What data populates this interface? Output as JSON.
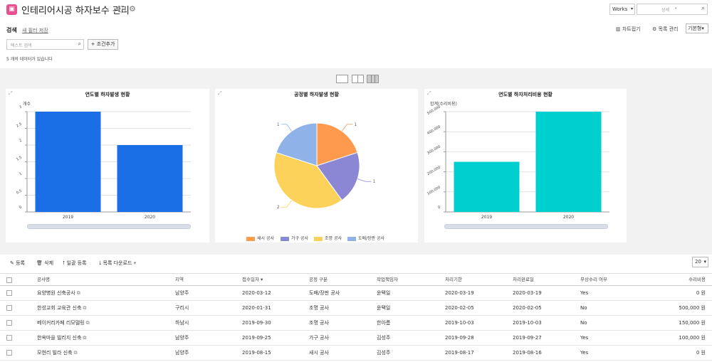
{
  "header": {
    "app_icon": "building-icon",
    "title": "인테리어시공 하자보수 관리",
    "works_select": "Works",
    "top_search_placeholder": "상세"
  },
  "filter": {
    "search_label": "검색",
    "save_filter": "새 필터 저장",
    "chart_toggle": "차트접기",
    "list_mgmt": "목록 관리",
    "view_select": "기본형",
    "text_search_placeholder": "텍스트 검색",
    "add_condition": "조건추가",
    "count_text": "5 개의 데이터가 있습니다"
  },
  "chart_data": [
    {
      "type": "bar",
      "title": "연도별 하자발생 현황",
      "ylabel": "개수",
      "categories": [
        "2019",
        "2020"
      ],
      "values": [
        3,
        2
      ],
      "ylim": [
        0,
        3
      ],
      "yticks": [
        "0",
        "0.5",
        "1",
        "1.5",
        "2",
        "2.5",
        "3"
      ],
      "color": "#1a6fe6"
    },
    {
      "type": "pie",
      "title": "공정별 하자발생 현황",
      "labels": [
        "새시 공사",
        "가구 공사",
        "조명 공사",
        "도배/장판 공사"
      ],
      "values": [
        1,
        1,
        2,
        1
      ],
      "colors": [
        "#fd9a4e",
        "#8b87d4",
        "#fdd25b",
        "#8fb3e8"
      ],
      "legend": "bottom"
    },
    {
      "type": "bar",
      "title": "연도별 하자처리비용 현황",
      "ylabel": "합계(수리비용)",
      "categories": [
        "2019",
        "2020"
      ],
      "values": [
        250000,
        500000
      ],
      "ylim": [
        0,
        500000
      ],
      "yticks": [
        "0",
        "100,000",
        "200,000",
        "300,000",
        "400,000",
        "500,000"
      ],
      "color": "#00cfcf"
    }
  ],
  "toolbar": {
    "register": "등록",
    "delete": "삭제",
    "bulk_register": "일괄 등록",
    "download": "목록 다운로드",
    "page_size": "20"
  },
  "table": {
    "columns": [
      "공사명",
      "지역",
      "접수일자",
      "공정 구분",
      "작업책임자",
      "처리기한",
      "처리완료일",
      "무상수리 여부",
      "수리비용"
    ],
    "rows": [
      [
        "요양병원 신축공사",
        "남양주",
        "2020-03-12",
        "도배/장판 공사",
        "윤택일",
        "2020-03-19",
        "2020-03-19",
        "Yes",
        "0 원"
      ],
      [
        "한성교회 교육관 신축",
        "구리시",
        "2020-01-31",
        "조명 공사",
        "윤택일",
        "2020-02-05",
        "2020-02-05",
        "No",
        "500,000 원"
      ],
      [
        "베이커리카페 리모델링",
        "하남시",
        "2019-09-30",
        "조명 공사",
        "한아름",
        "2019-10-03",
        "2019-10-03",
        "No",
        "150,000 원"
      ],
      [
        "한옥마을 빌리지 신축",
        "남양주",
        "2019-09-25",
        "가구 공사",
        "김성주",
        "2019-09-28",
        "2019-09-27",
        "Yes",
        "100,000 원"
      ],
      [
        "모현리 빌라 신축",
        "남양주",
        "2019-08-15",
        "새시 공사",
        "김성주",
        "2019-08-17",
        "2019-08-16",
        "Yes",
        "0 원"
      ]
    ]
  }
}
